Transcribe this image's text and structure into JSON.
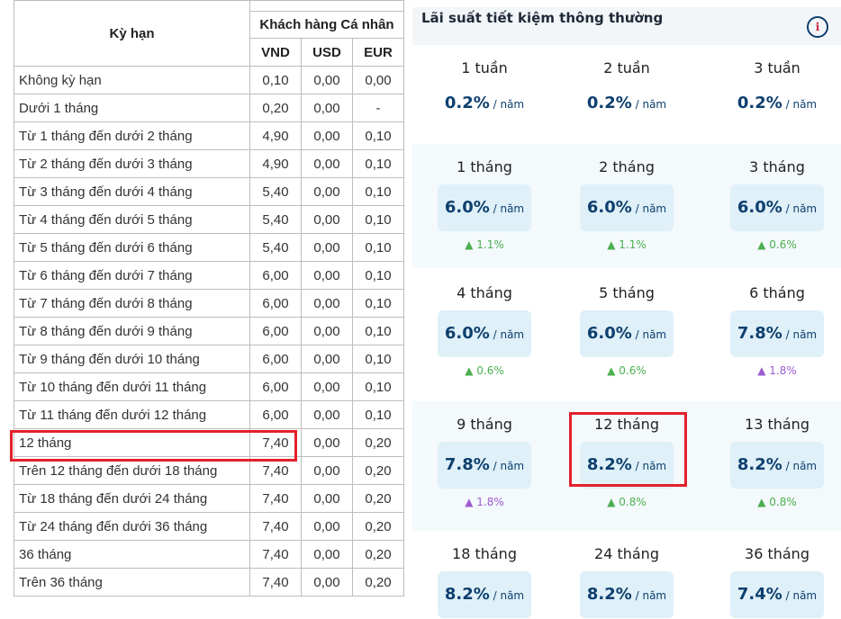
{
  "table": {
    "header_term": "Kỳ hạn",
    "header_group": "Khách hàng Cá nhân",
    "currencies": [
      "VND",
      "USD",
      "EUR"
    ],
    "rows": [
      [
        "Không kỳ hạn",
        "0,10",
        "0,00",
        "0,00"
      ],
      [
        "Dưới 1 tháng",
        "0,20",
        "0,00",
        "-"
      ],
      [
        "Từ 1 tháng đến dưới 2 tháng",
        "4,90",
        "0,00",
        "0,10"
      ],
      [
        "Từ 2 tháng đến dưới 3 tháng",
        "4,90",
        "0,00",
        "0,10"
      ],
      [
        "Từ 3 tháng đến dưới 4 tháng",
        "5,40",
        "0,00",
        "0,10"
      ],
      [
        "Từ 4 tháng đến dưới 5 tháng",
        "5,40",
        "0,00",
        "0,10"
      ],
      [
        "Từ 5 tháng đến dưới 6 tháng",
        "5,40",
        "0,00",
        "0,10"
      ],
      [
        "Từ 6 tháng đến dưới 7 tháng",
        "6,00",
        "0,00",
        "0,10"
      ],
      [
        "Từ 7 tháng đến dưới 8 tháng",
        "6,00",
        "0,00",
        "0,10"
      ],
      [
        "Từ 8 tháng đến dưới 9 tháng",
        "6,00",
        "0,00",
        "0,10"
      ],
      [
        "Từ 9 tháng đến dưới 10 tháng",
        "6,00",
        "0,00",
        "0,10"
      ],
      [
        "Từ 10 tháng đến dưới 11 tháng",
        "6,00",
        "0,00",
        "0,10"
      ],
      [
        "Từ 11 tháng đến dưới 12 tháng",
        "6,00",
        "0,00",
        "0,10"
      ],
      [
        "12 tháng",
        "7,40",
        "0,00",
        "0,20"
      ],
      [
        "Trên 12 tháng đến dưới 18 tháng",
        "7,40",
        "0,00",
        "0,20"
      ],
      [
        "Từ 18 tháng đến dưới 24 tháng",
        "7,40",
        "0,00",
        "0,20"
      ],
      [
        "Từ 24 tháng đến dưới 36 tháng",
        "7,40",
        "0,00",
        "0,20"
      ],
      [
        "36 tháng",
        "7,40",
        "0,00",
        "0,20"
      ],
      [
        "Trên 36 tháng",
        "7,40",
        "0,00",
        "0,20"
      ]
    ],
    "highlighted_row": "12 tháng"
  },
  "panel": {
    "title": "Lãi suất tiết kiệm thông thường",
    "info_icon": "i",
    "unit": "năm",
    "colors": {
      "rate": "#0d3f6e",
      "up_green": "#4caf50",
      "up_purple": "#9c5bd0",
      "highlight": "#e3202a"
    },
    "sections": [
      {
        "shaded": false,
        "boxed": false,
        "items": [
          {
            "term": "1 tuần",
            "rate": "0.2%"
          },
          {
            "term": "2 tuần",
            "rate": "0.2%"
          },
          {
            "term": "3 tuần",
            "rate": "0.2%"
          }
        ]
      },
      {
        "shaded": true,
        "boxed": true,
        "items": [
          {
            "term": "1 tháng",
            "rate": "6.0%",
            "change": "▲ 1.1%",
            "tone": "green"
          },
          {
            "term": "2 tháng",
            "rate": "6.0%",
            "change": "▲ 1.1%",
            "tone": "green"
          },
          {
            "term": "3 tháng",
            "rate": "6.0%",
            "change": "▲ 0.6%",
            "tone": "green"
          }
        ]
      },
      {
        "shaded": false,
        "boxed": true,
        "items": [
          {
            "term": "4 tháng",
            "rate": "6.0%",
            "change": "▲ 0.6%",
            "tone": "green"
          },
          {
            "term": "5 tháng",
            "rate": "6.0%",
            "change": "▲ 0.6%",
            "tone": "green"
          },
          {
            "term": "6 tháng",
            "rate": "7.8%",
            "change": "▲ 1.8%",
            "tone": "purple"
          }
        ]
      },
      {
        "shaded": true,
        "boxed": true,
        "items": [
          {
            "term": "9 tháng",
            "rate": "7.8%",
            "change": "▲ 1.8%",
            "tone": "purple"
          },
          {
            "term": "12 tháng",
            "rate": "8.2%",
            "change": "▲ 0.8%",
            "tone": "green"
          },
          {
            "term": "13 tháng",
            "rate": "8.2%",
            "change": "▲ 0.8%",
            "tone": "green"
          }
        ]
      },
      {
        "shaded": false,
        "boxed": true,
        "items": [
          {
            "term": "18 tháng",
            "rate": "8.2%"
          },
          {
            "term": "24 tháng",
            "rate": "8.2%"
          },
          {
            "term": "36 tháng",
            "rate": "7.4%"
          }
        ]
      }
    ],
    "highlighted_term": "12 tháng"
  }
}
